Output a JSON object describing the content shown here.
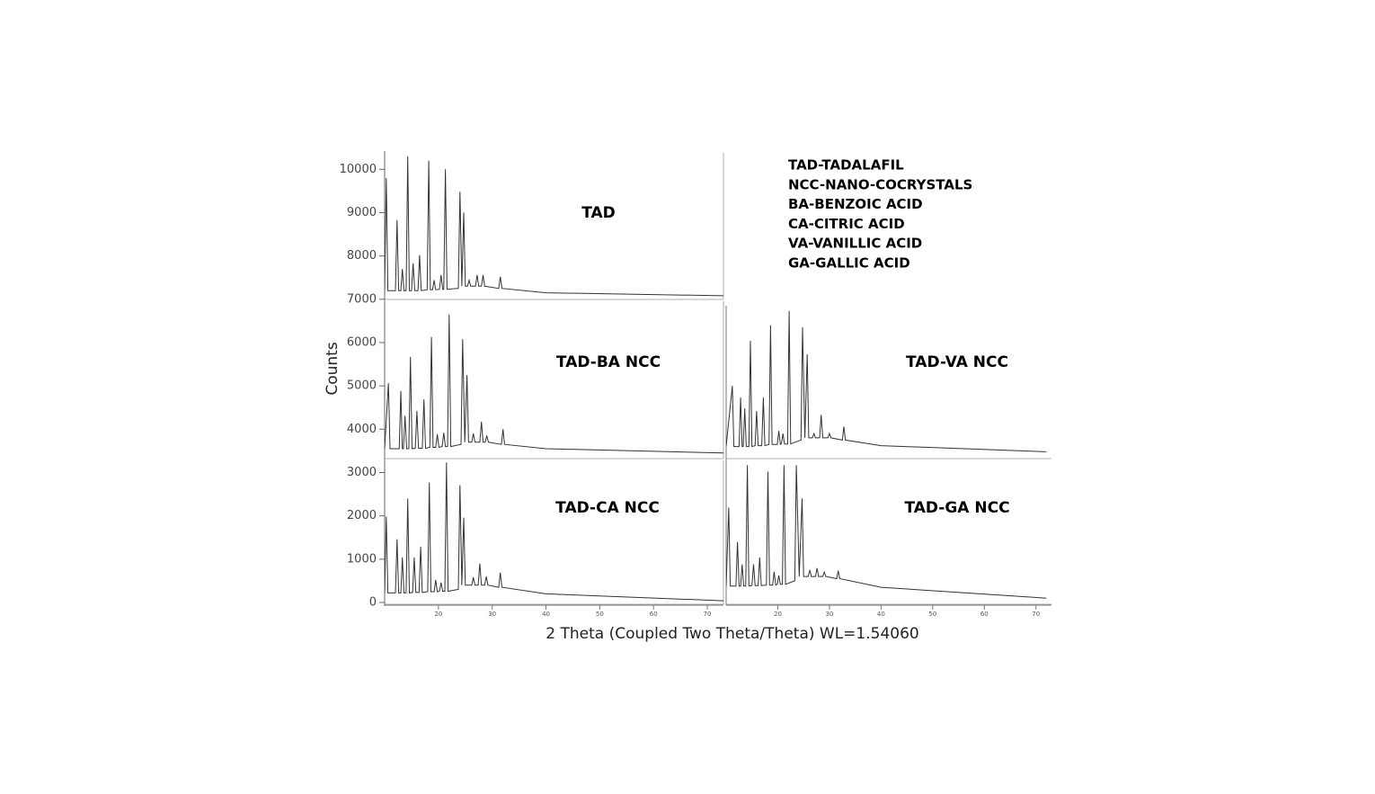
{
  "chart_data": {
    "type": "line",
    "xlabel": "2 Theta (Coupled Two Theta/Theta) WL=1.54060",
    "ylabel": "Counts",
    "annotations": [
      "TAD-TADALAFIL",
      "NCC-NANO-COCRYSTALS",
      "BA-BENZOIC ACID",
      "CA-CITRIC ACID",
      "VA-VANILLIC ACID",
      "GA-GALLIC ACID"
    ],
    "xlim": [
      10,
      73
    ],
    "xticks": [
      20,
      30,
      40,
      50,
      60,
      70
    ],
    "ylim": [
      0,
      10400
    ],
    "yticks": [
      0,
      1000,
      2000,
      3000,
      4000,
      5000,
      6000,
      7000,
      8000,
      9000,
      10000
    ],
    "color": "#333333",
    "series": [
      {
        "name": "TAD",
        "x": [
          10,
          10.3,
          10.6,
          12.0,
          12.3,
          12.6,
          13.0,
          13.3,
          13.6,
          14.0,
          14.3,
          14.6,
          15.0,
          15.3,
          15.6,
          16.2,
          16.5,
          16.8,
          17.9,
          18.2,
          18.5,
          18.9,
          19.2,
          19.5,
          20.2,
          20.5,
          20.8,
          21.0,
          21.3,
          21.6,
          23.7,
          24.0,
          24.35,
          24.7,
          25.0,
          25.4,
          25.7,
          26.0,
          26.9,
          27.2,
          27.5,
          28.0,
          28.3,
          28.6,
          31.2,
          31.5,
          31.8,
          40,
          73
        ],
        "values": [
          7200,
          9800,
          7200,
          7200,
          8830,
          7200,
          7200,
          7700,
          7200,
          7200,
          10300,
          7200,
          7200,
          7830,
          7200,
          7200,
          8020,
          7200,
          7220,
          10200,
          7220,
          7220,
          7440,
          7220,
          7230,
          7560,
          7230,
          7230,
          10000,
          7230,
          7250,
          9480,
          7300,
          9000,
          7300,
          7300,
          7440,
          7300,
          7300,
          7560,
          7300,
          7300,
          7560,
          7300,
          7250,
          7520,
          7250,
          7150,
          7080
        ]
      },
      {
        "name": "TAD-BA NCC",
        "x": [
          10,
          10.7,
          11.0,
          12.7,
          13.0,
          13.3,
          13.5,
          13.8,
          14.1,
          14.5,
          14.8,
          15.1,
          15.7,
          16.0,
          16.3,
          17.0,
          17.3,
          17.6,
          18.4,
          18.7,
          19.0,
          19.5,
          19.8,
          20.1,
          20.7,
          21.0,
          21.3,
          21.7,
          22.0,
          22.3,
          24.2,
          24.5,
          24.9,
          25.3,
          25.6,
          26.2,
          26.5,
          26.8,
          27.7,
          28.0,
          28.3,
          28.7,
          29.0,
          29.3,
          31.7,
          32.0,
          32.3,
          40,
          73
        ],
        "values": [
          3550,
          5060,
          3550,
          3550,
          4880,
          3550,
          3550,
          4310,
          3550,
          3550,
          5670,
          3550,
          3560,
          4420,
          3560,
          3560,
          4690,
          3560,
          3580,
          6130,
          3580,
          3580,
          3880,
          3580,
          3600,
          3920,
          3600,
          3600,
          6650,
          3600,
          3650,
          6080,
          3700,
          5250,
          3700,
          3700,
          3900,
          3700,
          3700,
          4170,
          3700,
          3700,
          3850,
          3700,
          3650,
          4000,
          3650,
          3550,
          3450
        ]
      },
      {
        "name": "TAD-CA NCC",
        "x": [
          10,
          10.3,
          10.6,
          12.0,
          12.3,
          12.6,
          13.0,
          13.3,
          13.6,
          14.0,
          14.3,
          14.6,
          15.2,
          15.5,
          15.8,
          16.4,
          16.7,
          17.0,
          18.0,
          18.3,
          18.6,
          19.2,
          19.5,
          19.8,
          20.2,
          20.5,
          20.8,
          21.2,
          21.5,
          21.8,
          23.7,
          24.0,
          24.35,
          24.7,
          25.0,
          26.2,
          26.5,
          26.8,
          27.4,
          27.7,
          28.0,
          28.6,
          28.9,
          29.2,
          31.2,
          31.5,
          31.8,
          40,
          73
        ],
        "values": [
          220,
          1980,
          220,
          220,
          1460,
          220,
          220,
          1040,
          220,
          220,
          2400,
          220,
          230,
          1040,
          230,
          230,
          1290,
          230,
          250,
          2770,
          250,
          250,
          520,
          250,
          260,
          460,
          260,
          260,
          3230,
          260,
          300,
          2710,
          400,
          1960,
          400,
          400,
          580,
          400,
          400,
          900,
          400,
          400,
          600,
          400,
          350,
          690,
          350,
          200,
          40
        ]
      },
      {
        "name": "TAD-VA NCC",
        "x": [
          10,
          11.2,
          11.5,
          12.5,
          12.8,
          13.1,
          13.3,
          13.6,
          13.9,
          14.4,
          14.7,
          15.0,
          15.6,
          15.9,
          16.2,
          16.9,
          17.2,
          17.5,
          18.3,
          18.6,
          18.9,
          19.9,
          20.2,
          20.5,
          20.7,
          21.0,
          21.3,
          21.9,
          22.2,
          22.5,
          24.5,
          24.8,
          25.25,
          25.7,
          26.0,
          26.7,
          27.0,
          27.3,
          28.1,
          28.4,
          28.7,
          29.7,
          30.0,
          30.3,
          32.5,
          32.8,
          33.1,
          40,
          72
        ],
        "values": [
          3600,
          5000,
          3600,
          3600,
          4730,
          3600,
          3600,
          4480,
          3600,
          3600,
          6040,
          3600,
          3620,
          4420,
          3620,
          3620,
          4730,
          3620,
          3650,
          6400,
          3650,
          3650,
          3960,
          3650,
          3660,
          3900,
          3660,
          3660,
          6730,
          3660,
          3750,
          6350,
          3800,
          5730,
          3800,
          3800,
          3900,
          3800,
          3800,
          4330,
          3800,
          3800,
          3900,
          3800,
          3750,
          4060,
          3750,
          3620,
          3480
        ]
      },
      {
        "name": "TAD-GA NCC",
        "x": [
          10,
          10.5,
          10.8,
          11.9,
          12.2,
          12.5,
          12.8,
          13.1,
          13.4,
          13.8,
          14.1,
          14.4,
          15.0,
          15.3,
          15.6,
          16.2,
          16.5,
          16.8,
          17.8,
          18.1,
          18.4,
          19.0,
          19.3,
          19.6,
          19.9,
          20.2,
          20.5,
          20.9,
          21.2,
          21.5,
          23.3,
          23.6,
          24.15,
          24.7,
          25.0,
          25.9,
          26.2,
          26.5,
          27.3,
          27.6,
          27.9,
          28.7,
          29.0,
          29.3,
          31.4,
          31.7,
          32.0,
          40,
          72
        ],
        "values": [
          380,
          2190,
          380,
          380,
          1400,
          380,
          380,
          880,
          380,
          380,
          3170,
          380,
          390,
          880,
          390,
          390,
          1040,
          390,
          400,
          3020,
          400,
          400,
          710,
          400,
          420,
          625,
          420,
          420,
          3170,
          420,
          500,
          3170,
          600,
          2400,
          600,
          600,
          750,
          600,
          600,
          790,
          600,
          600,
          700,
          600,
          550,
          730,
          550,
          350,
          100
        ]
      }
    ]
  }
}
